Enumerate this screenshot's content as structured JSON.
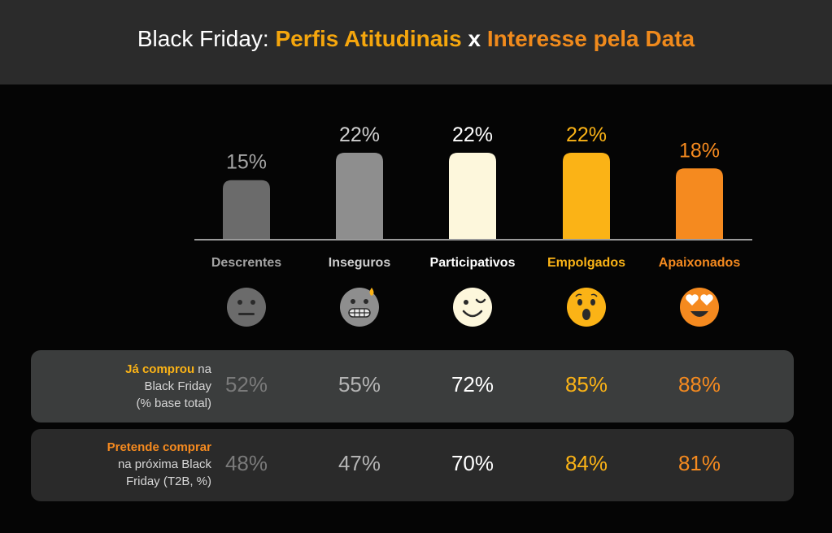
{
  "title": {
    "prefix": "Black Friday: ",
    "part1": "Perfis Atitudinais",
    "sep": " x ",
    "part2": "Interesse pela Data"
  },
  "chart_data": {
    "type": "bar",
    "categories": [
      "Descrentes",
      "Inseguros",
      "Participativos",
      "Empolgados",
      "Apaixonados"
    ],
    "values": [
      15,
      22,
      22,
      22,
      18
    ],
    "value_labels": [
      "15%",
      "22%",
      "22%",
      "22%",
      "18%"
    ],
    "ylim": [
      0,
      25
    ],
    "colors": [
      "#6b6b6b",
      "#8e8e8e",
      "#fdf7dc",
      "#fbb316",
      "#f58a1f"
    ],
    "label_colors": [
      "#a4a4a4",
      "#cfcfcf",
      "#ffffff",
      "#fbb316",
      "#f58a1f"
    ],
    "grid": false,
    "legend": "none"
  },
  "emoji_icons": [
    "neutral-face-icon",
    "grimacing-sweat-face-icon",
    "winking-face-icon",
    "surprised-face-icon",
    "heart-eyes-face-icon"
  ],
  "table": {
    "rows": [
      {
        "label_bold": "Já comprou",
        "label_rest": " na",
        "label_line2": "Black Friday",
        "label_line3": "(% base total)",
        "bold_color": "#fbb316",
        "values": [
          "52%",
          "55%",
          "72%",
          "85%",
          "88%"
        ]
      },
      {
        "label_bold": "Pretende comprar",
        "label_rest": "",
        "label_line2": "na próxima Black",
        "label_line3": "Friday (T2B, %)",
        "bold_color": "#f58a1f",
        "values": [
          "48%",
          "47%",
          "70%",
          "84%",
          "81%"
        ]
      }
    ],
    "value_colors": [
      "#7a7a7a",
      "#b4b4b4",
      "#ffffff",
      "#fbb316",
      "#f58a1f"
    ]
  }
}
